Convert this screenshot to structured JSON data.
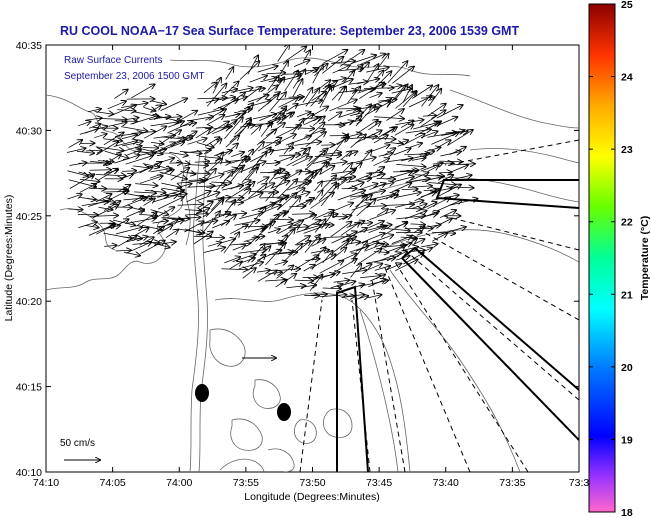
{
  "title": "RU COOL  NOAA−17  Sea Surface Temperature:  September 23, 2006 1539 GMT",
  "inset": {
    "line1": "Raw Surface Currents",
    "line2": "September 23, 2006 1500 GMT"
  },
  "axes": {
    "xlabel": "Longitude (Degrees:Minutes)",
    "ylabel": "Latitude (Degrees:Minutes)",
    "xticks": [
      "74:10",
      "74:05",
      "74:00",
      "73:55",
      "73:50",
      "73:45",
      "73:40",
      "73:35",
      "73:3"
    ],
    "yticks": [
      "40:35",
      "40:30",
      "40:25",
      "40:20",
      "40:15",
      "40:10"
    ]
  },
  "colorbar": {
    "label": "Temperature (°C)",
    "ticks": [
      "25",
      "24",
      "23",
      "22",
      "21",
      "20",
      "19",
      "18"
    ],
    "range": [
      18,
      25
    ]
  },
  "scale_arrow": {
    "label": "50 cm/s"
  },
  "colors": {
    "title": "#1a1aa6",
    "land_outline": "#555555",
    "vectors": "#000000"
  }
}
